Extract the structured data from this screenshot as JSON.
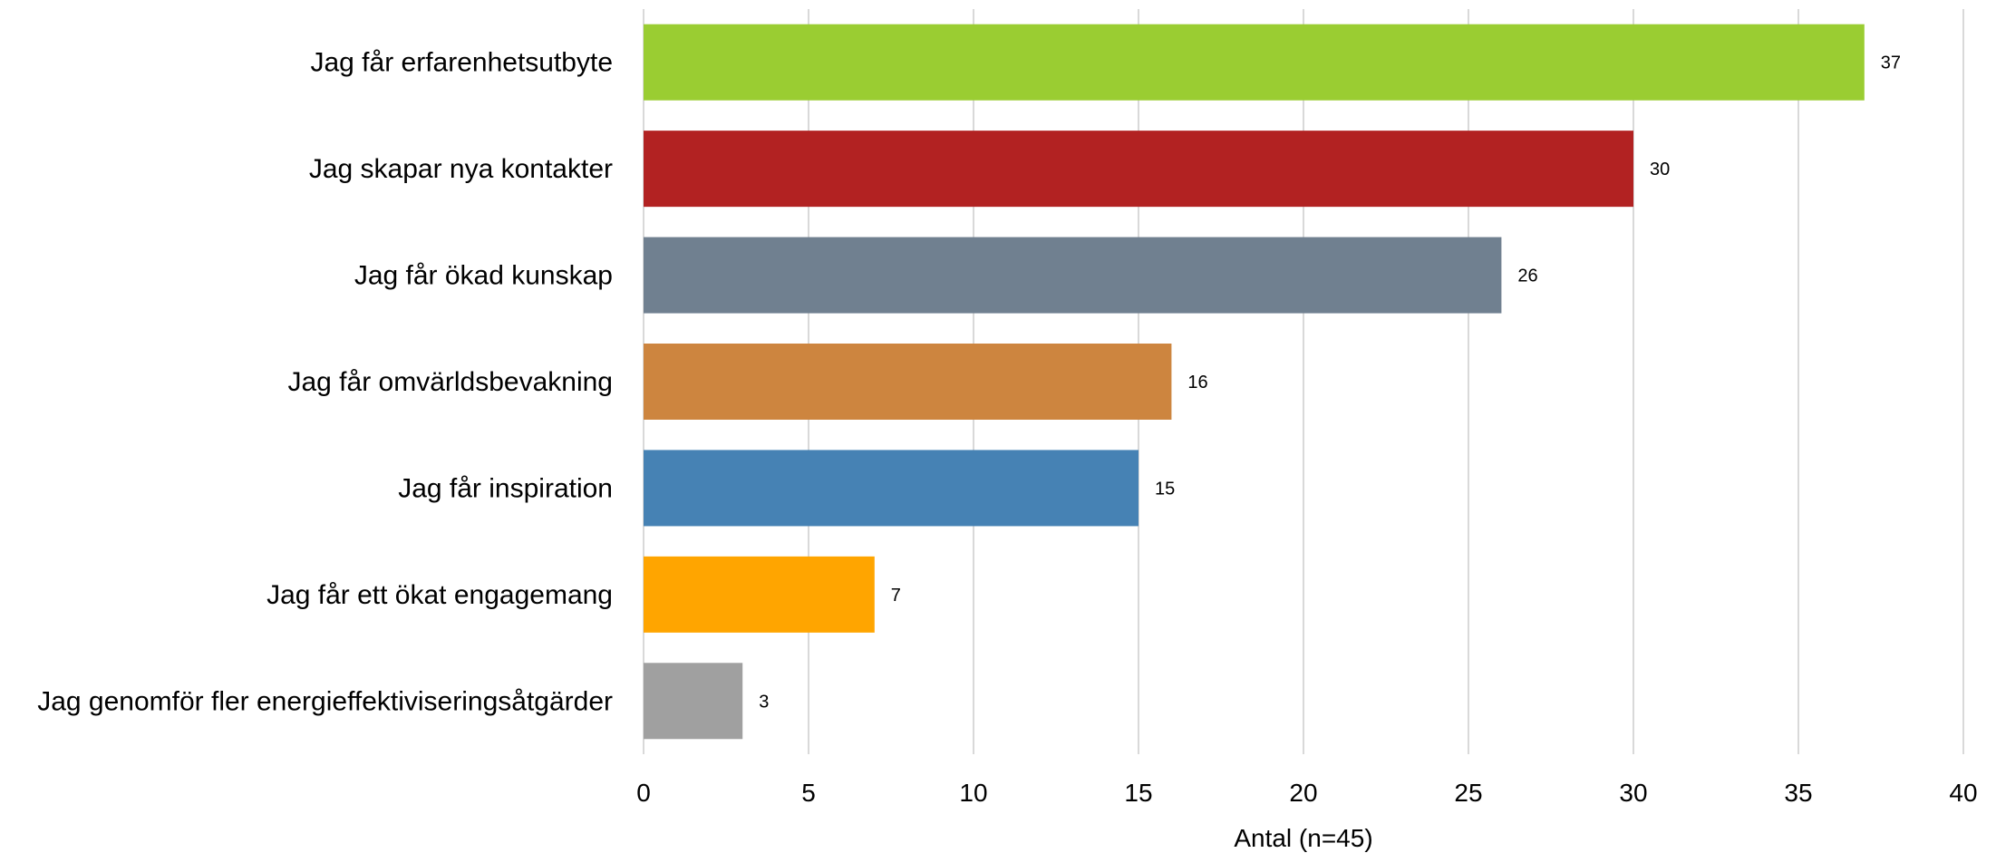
{
  "chart_data": {
    "type": "bar",
    "orientation": "horizontal",
    "categories": [
      "Jag får erfarenhetsutbyte",
      "Jag skapar nya kontakter",
      "Jag får ökad kunskap",
      "Jag får omvärldsbevakning",
      "Jag får inspiration",
      "Jag får ett ökat engagemang",
      "Jag genomför fler energieffektiviseringsåtgärder"
    ],
    "values": [
      37,
      30,
      26,
      16,
      15,
      7,
      3
    ],
    "colors": [
      "#9acd32",
      "#b22222",
      "#708090",
      "#cd853f",
      "#4682b4",
      "#ffa500",
      "#a0a0a0"
    ],
    "xlabel": "Antal (n=45)",
    "ylabel": "",
    "xlim": [
      0,
      40
    ],
    "xticks": [
      0,
      5,
      10,
      15,
      20,
      25,
      30,
      35,
      40
    ],
    "grid": "vertical",
    "legend": "none"
  }
}
